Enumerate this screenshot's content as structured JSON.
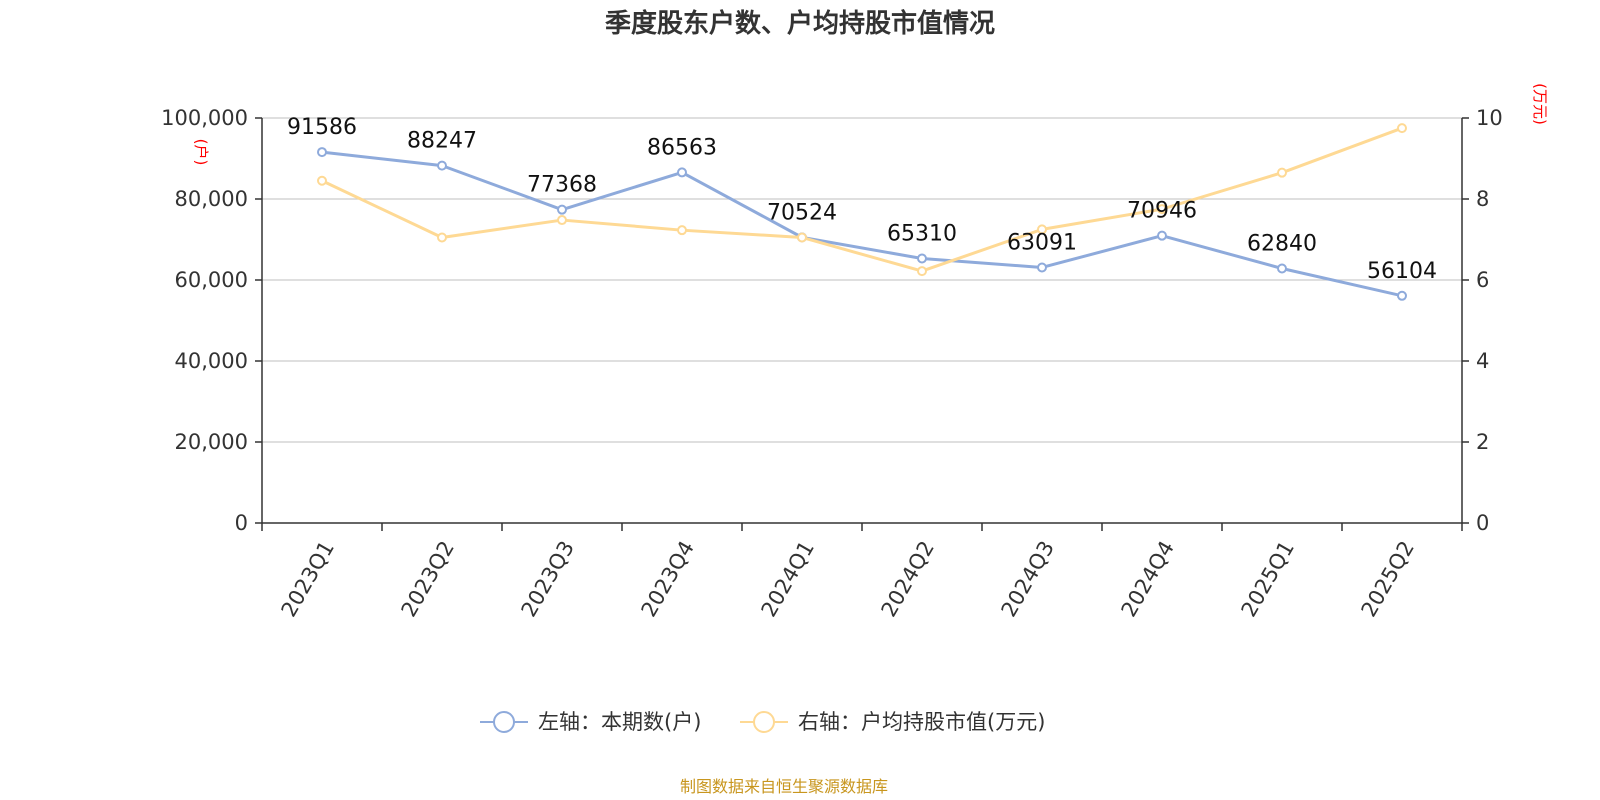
{
  "title": "季度股东户数、户均持股市值情况",
  "source": "制图数据来自恒生聚源数据库",
  "colors": {
    "left_series": "#8eaadb",
    "right_series": "#fed994",
    "unit_label": "#ff0000",
    "source": "#c8961e"
  },
  "chart_data": {
    "type": "line",
    "title": "季度股东户数、户均持股市值情况",
    "categories": [
      "2023Q1",
      "2023Q2",
      "2023Q3",
      "2023Q4",
      "2024Q1",
      "2024Q2",
      "2024Q3",
      "2024Q4",
      "2025Q1",
      "2025Q2"
    ],
    "left_axis": {
      "unit": "(户)",
      "ylim": [
        0,
        100000
      ],
      "ticks": [
        "0",
        "20,000",
        "40,000",
        "60,000",
        "80,000",
        "100,000"
      ]
    },
    "right_axis": {
      "unit": "(万元)",
      "ylim": [
        0,
        10
      ],
      "ticks": [
        "0",
        "2",
        "4",
        "6",
        "8",
        "10"
      ]
    },
    "grid": true,
    "legend_position": "bottom-center",
    "series": [
      {
        "name": "左轴：本期数(户)",
        "axis": "left",
        "values": [
          91586,
          88247,
          77368,
          86563,
          70524,
          65310,
          63091,
          70946,
          62840,
          56104
        ],
        "labels": [
          "91586",
          "88247",
          "77368",
          "86563",
          "70524",
          "65310",
          "63091",
          "70946",
          "62840",
          "56104"
        ]
      },
      {
        "name": "右轴：户均持股市值(万元)",
        "axis": "right",
        "values": [
          8.45,
          7.05,
          7.48,
          7.23,
          7.05,
          6.22,
          7.25,
          7.75,
          8.65,
          9.75
        ]
      }
    ]
  }
}
